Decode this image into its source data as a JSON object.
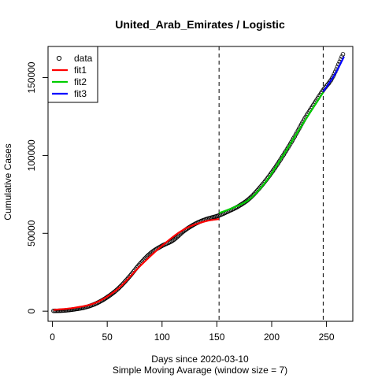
{
  "chart_data": {
    "type": "scatter",
    "title": "United_Arab_Emirates / Logistic",
    "xlabel": "Days since 2020-03-10",
    "subtitle": "Simple Moving Avarage (window size = 7)",
    "ylabel": "Cumulative Cases",
    "xlim": [
      -4,
      274
    ],
    "ylim": [
      -6500,
      170000
    ],
    "x_ticks": [
      0,
      50,
      100,
      150,
      200,
      250
    ],
    "y_ticks": [
      0,
      50000,
      100000,
      150000
    ],
    "x_tick_labels": [
      "0",
      "50",
      "100",
      "150",
      "200",
      "250"
    ],
    "y_tick_labels": [
      "0",
      "50000",
      "100000",
      "150000"
    ],
    "vlines": [
      152,
      247
    ],
    "legend": {
      "position": "top-left",
      "entries": [
        {
          "label": "data",
          "symbol": "circle",
          "color": "#000000"
        },
        {
          "label": "fit1",
          "symbol": "line",
          "color": "#ff0000"
        },
        {
          "label": "fit2",
          "symbol": "line",
          "color": "#00cd00"
        },
        {
          "label": "fit3",
          "symbol": "line",
          "color": "#0000ff"
        }
      ]
    },
    "data_anchors": {
      "x": [
        1,
        10,
        20,
        30,
        40,
        50,
        60,
        70,
        80,
        90,
        100,
        110,
        120,
        130,
        140,
        152,
        160,
        170,
        180,
        190,
        200,
        210,
        220,
        230,
        240,
        247,
        255,
        265
      ],
      "y": [
        200,
        400,
        1200,
        2500,
        5000,
        9000,
        14500,
        22000,
        30500,
        37500,
        42000,
        45500,
        51500,
        56000,
        59000,
        61500,
        64000,
        67500,
        72500,
        80000,
        89000,
        99500,
        111000,
        123500,
        134500,
        142000,
        149500,
        165000
      ]
    },
    "series": [
      {
        "name": "fit1",
        "color": "#ff0000",
        "x_range": [
          1,
          152
        ],
        "x": [
          1,
          20,
          40,
          60,
          80,
          100,
          120,
          140,
          152
        ],
        "y": [
          800,
          2200,
          5600,
          14500,
          29000,
          42000,
          52500,
          57800,
          59200
        ]
      },
      {
        "name": "fit2",
        "color": "#00cd00",
        "x_range": [
          152,
          247
        ],
        "x": [
          152,
          165,
          180,
          195,
          210,
          225,
          240,
          247
        ],
        "y": [
          63000,
          66500,
          72000,
          83500,
          99500,
          116500,
          133000,
          140500
        ]
      },
      {
        "name": "fit3",
        "color": "#0000ff",
        "x_range": [
          247,
          266
        ],
        "x": [
          247,
          252,
          258,
          266
        ],
        "y": [
          141000,
          146000,
          152500,
          163500
        ]
      }
    ]
  }
}
